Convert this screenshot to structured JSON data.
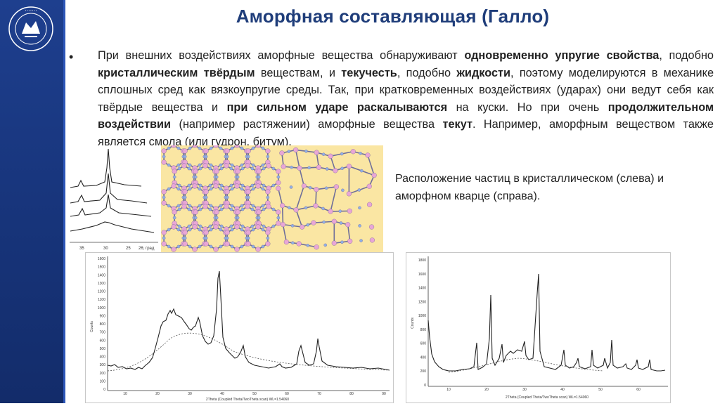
{
  "slide": {
    "title": "Аморфная составляющая (Галло)",
    "bullet_marker": "•",
    "paragraph": [
      {
        "text": "При внешних воздействиях аморфные вещества обнаруживают ",
        "bold": false
      },
      {
        "text": "одновременно упругие свойства",
        "bold": true
      },
      {
        "text": ", подобно ",
        "bold": false
      },
      {
        "text": "кристаллическим твёрдым",
        "bold": true
      },
      {
        "text": " веществам, и ",
        "bold": false
      },
      {
        "text": "текучесть",
        "bold": true
      },
      {
        "text": ", подобно ",
        "bold": false
      },
      {
        "text": "жидкости",
        "bold": true
      },
      {
        "text": ", поэтому моделируются в механике сплошных сред как вязкоупругие среды. Так, при кратковременных воздействиях (ударах) они ведут себя как твёрдые вещества и ",
        "bold": false
      },
      {
        "text": "при сильном ударе раскалываются",
        "bold": true
      },
      {
        "text": " на куски. Но при очень ",
        "bold": false
      },
      {
        "text": "продолжительном воздействии",
        "bold": true
      },
      {
        "text": " (например растяжении) аморфные вещества ",
        "bold": false
      },
      {
        "text": "текут",
        "bold": true
      },
      {
        "text": ". Например, аморфным веществом также является смола (или гудрон, битум).",
        "bold": false
      }
    ],
    "caption": "Расположение частиц в кристаллическом (слева) и аморфном кварце (справа).",
    "small_spectra": {
      "tick_labels": [
        "35",
        "30",
        "25",
        "2θ, град"
      ]
    },
    "chart_left": {
      "ylabel": "Counts",
      "xlabel": "2Theta (Coupled Theta/TwoTheta scan) WL=1.54060",
      "y_ticks": [
        "1600",
        "1500",
        "1400",
        "1300",
        "1200",
        "1100",
        "1000",
        "900",
        "800",
        "700",
        "600",
        "500",
        "400",
        "300",
        "200",
        "100",
        "0"
      ],
      "x_ticks": [
        "10",
        "20",
        "30",
        "40",
        "50",
        "60",
        "70",
        "80",
        "90"
      ]
    },
    "chart_right": {
      "ylabel": "Counts",
      "xlabel": "2Theta (Coupled Theta/TwoTheta scan) WL=1.54060",
      "y_ticks": [
        "1800",
        "1600",
        "1400",
        "1200",
        "1000",
        "800",
        "600",
        "400",
        "200",
        "0"
      ],
      "x_ticks": [
        "10",
        "20",
        "30",
        "40",
        "50",
        "60"
      ]
    },
    "colors": {
      "sidebar": "#1e3f8e",
      "title": "#1f3d7a",
      "structure_bg": "#fae6a3",
      "atom_pink": "#e9a6d6",
      "atom_blue": "#8fb0e6"
    }
  }
}
